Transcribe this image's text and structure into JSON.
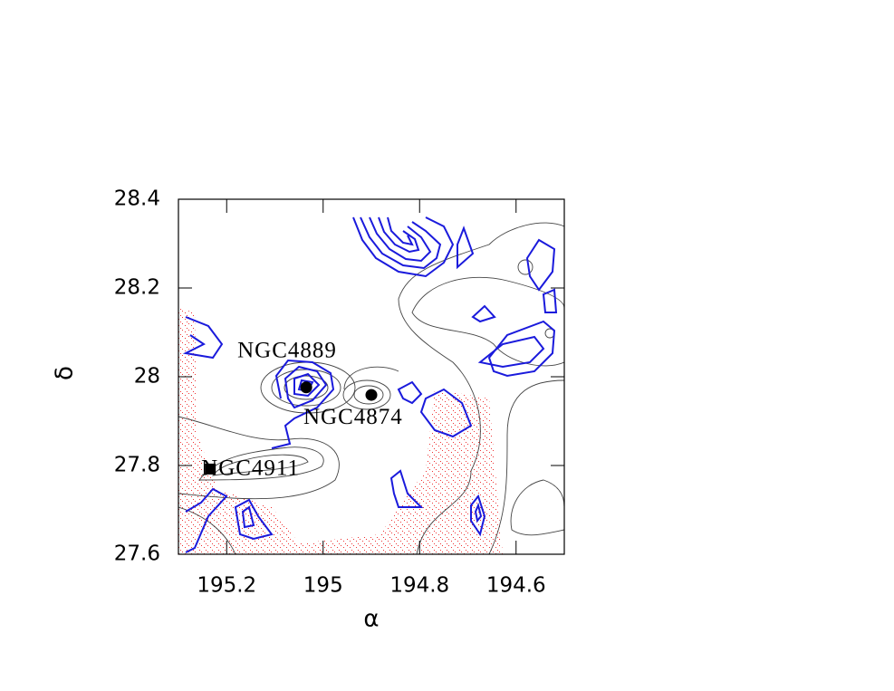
{
  "chart_data": {
    "type": "scatter",
    "xlabel": "α",
    "ylabel": "δ",
    "xlim": [
      195.3,
      194.5
    ],
    "ylim": [
      27.6,
      28.4
    ],
    "xticks": [
      195.2,
      195,
      194.8,
      194.6
    ],
    "yticks": [
      27.6,
      27.8,
      28,
      28.2,
      28.4
    ],
    "points": {
      "x": [
        195.035,
        194.9,
        195.234
      ],
      "y": [
        27.976,
        27.959,
        27.792
      ],
      "labels": [
        "NGC4889",
        "NGC4874",
        "NGC4911"
      ],
      "markers": [
        "circle",
        "circle",
        "square"
      ],
      "color": "#000000"
    }
  }
}
